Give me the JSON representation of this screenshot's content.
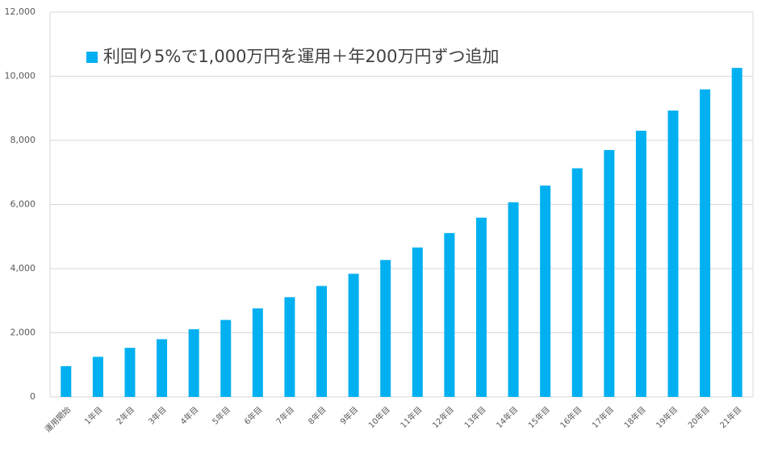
{
  "chart_data": {
    "type": "bar",
    "categories": [
      "運用開始",
      "1年目",
      "2年目",
      "3年目",
      "4年目",
      "5年目",
      "6年目",
      "7年目",
      "8年目",
      "9年目",
      "10年目",
      "11年目",
      "12年目",
      "13年目",
      "14年目",
      "15年目",
      "16年目",
      "17年目",
      "18年目",
      "19年目",
      "20年目",
      "21年目"
    ],
    "series": [
      {
        "name": "利回り5%で1,000万円を運用＋年200万円ずつ追加",
        "color": "#00b0f0",
        "values": [
          960,
          1250,
          1530,
          1800,
          2110,
          2400,
          2760,
          3110,
          3460,
          3840,
          4270,
          4660,
          5110,
          5590,
          6070,
          6590,
          7130,
          7700,
          8300,
          8930,
          9590,
          10260
        ]
      }
    ],
    "ylim": [
      0,
      12000
    ],
    "yticks": [
      0,
      {
        "value": 2000,
        "label": "2,000"
      },
      {
        "value": 4000,
        "label": "4,000"
      },
      {
        "value": 6000,
        "label": "6,000"
      },
      {
        "value": 8000,
        "label": "8,000"
      },
      {
        "value": 10000,
        "label": "10,000"
      },
      {
        "value": 12000,
        "label": "12,000"
      }
    ],
    "grid": true
  }
}
